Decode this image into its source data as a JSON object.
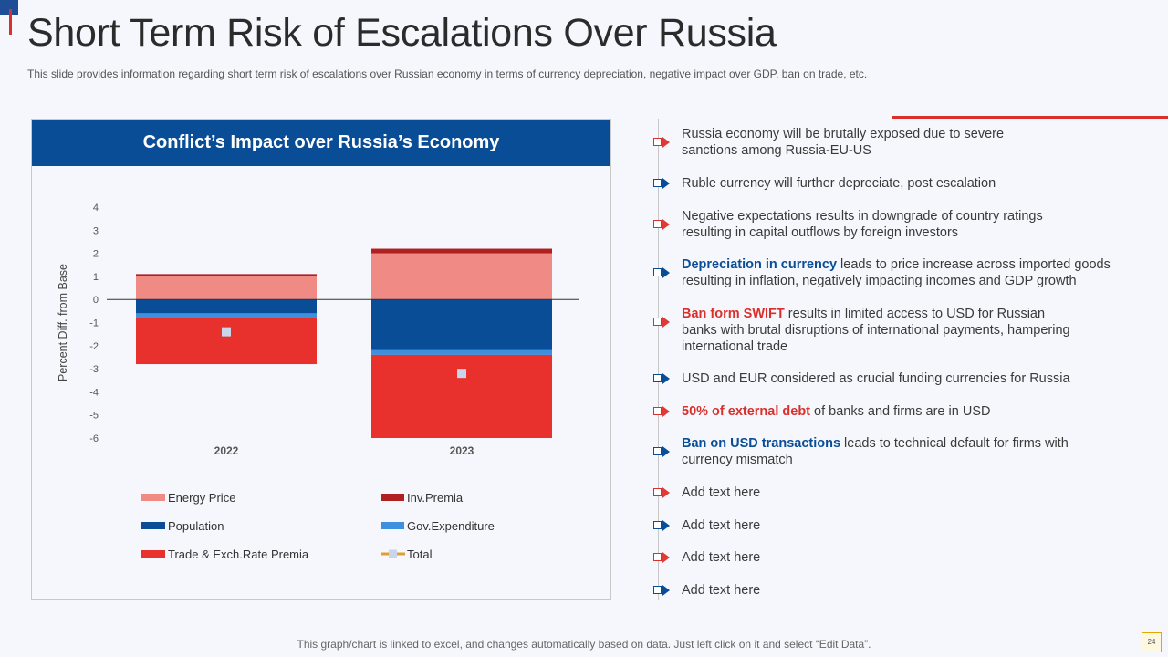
{
  "slide": {
    "title": "Short Term Risk of Escalations Over Russia",
    "subtitle": "This slide provides information regarding short term risk of escalations over Russian economy in terms of currency depreciation, negative impact over GDP,  ban on trade, etc.",
    "footer_note": "This graph/chart is linked to excel,  and changes automatically based on data. Just left click on it and select “Edit Data”.",
    "page_number": "24"
  },
  "chart_data": {
    "type": "bar",
    "stacked": true,
    "title": "Conflict’s  Impact over Russia’s Economy",
    "ylabel": "Percent  Diff.  from Base",
    "xlabel": "",
    "ylim": [
      -6,
      4
    ],
    "yticks": [
      4,
      3,
      2,
      1,
      0,
      -1,
      -2,
      -3,
      -4,
      -5,
      -6
    ],
    "categories": [
      "2022",
      "2023"
    ],
    "series": [
      {
        "name": "Energy Price",
        "values": [
          1.0,
          2.0
        ],
        "color": "#f08a84"
      },
      {
        "name": "Inv.Premia",
        "values": [
          0.1,
          0.2
        ],
        "color": "#b02020"
      },
      {
        "name": "Population",
        "values": [
          -0.6,
          -2.2
        ],
        "color": "#0a4d97"
      },
      {
        "name": "Gov.Expenditure",
        "values": [
          -0.2,
          -0.2
        ],
        "color": "#3d8fe0"
      },
      {
        "name": "Trade & Exch.Rate Premia",
        "values": [
          -2.0,
          -3.6
        ],
        "color": "#e8302c"
      }
    ],
    "total": {
      "name": "Total",
      "values": [
        -1.4,
        -3.2
      ],
      "color": "#c9d5ea",
      "line_color": "#e0a030"
    },
    "legend": [
      "Energy Price",
      "Inv.Premia",
      "Population",
      "Gov.Expenditure",
      "Trade & Exch.Rate Premia",
      "Total"
    ],
    "legend_position": "bottom"
  },
  "bullets": [
    {
      "color": "red",
      "prefix": "",
      "text": "Russia economy will be brutally  exposed due to severe\nsanctions among Russia-EU-US"
    },
    {
      "color": "blue",
      "prefix": "",
      "text": "Ruble currency will further depreciate, post escalation"
    },
    {
      "color": "red",
      "prefix": "",
      "text": "Negative expectations results in downgrade of country ratings\nresulting in capital outflows by foreign investors"
    },
    {
      "color": "blue",
      "prefix": "Depreciation in currency",
      "prefix_style": "hl-blue",
      "text": " leads to price increase across imported goods\nresulting in inflation,  negatively  impacting incomes and GDP growth"
    },
    {
      "color": "red",
      "prefix": "Ban form  SWIFT",
      "prefix_style": "hl-red",
      "text": " results in limited access to USD for Russian\nbanks with brutal disruptions of international  payments,  hampering\ninternational trade"
    },
    {
      "color": "blue",
      "prefix": "",
      "text": "USD and EUR considered as crucial funding currencies for Russia"
    },
    {
      "color": "red",
      "prefix": "50% of external debt",
      "prefix_style": "hl-red",
      "text": " of banks and firms are in USD"
    },
    {
      "color": "blue",
      "prefix": "Ban on USD transactions",
      "prefix_style": "hl-blue",
      "text": " leads to technical default for firms with\ncurrency mismatch"
    },
    {
      "color": "red",
      "prefix": "",
      "text": "Add text here"
    },
    {
      "color": "blue",
      "prefix": "",
      "text": "Add text here"
    },
    {
      "color": "red",
      "prefix": "",
      "text": "Add text here"
    },
    {
      "color": "blue",
      "prefix": "",
      "text": "Add text here"
    }
  ]
}
